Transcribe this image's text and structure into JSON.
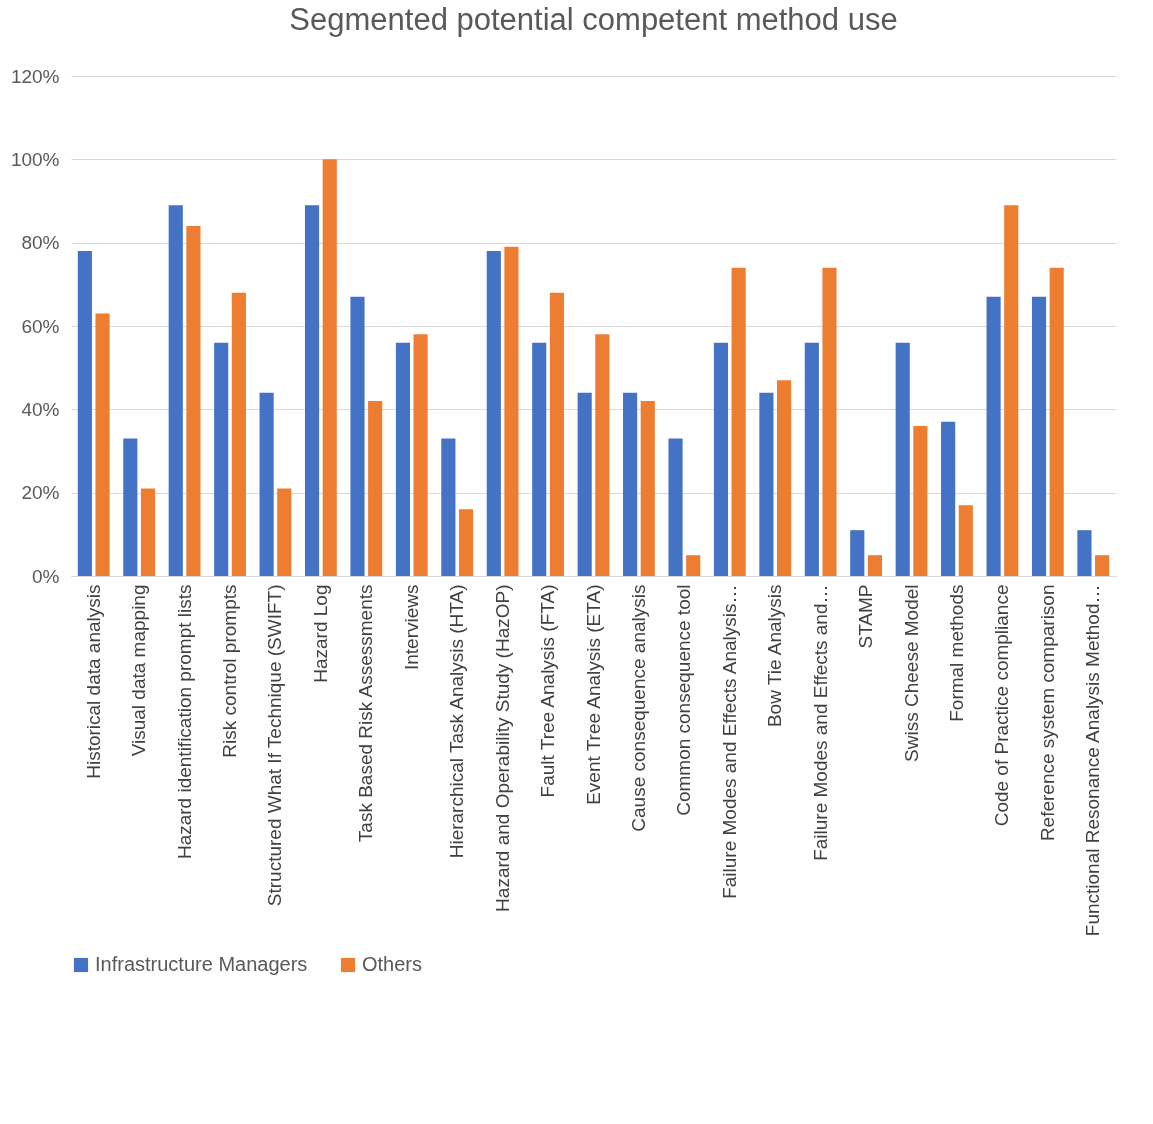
{
  "chart_data": {
    "type": "bar",
    "title": "Segmented potential competent method use",
    "categories": [
      "Historical data analysis",
      "Visual data mapping",
      "Hazard identification prompt lists",
      "Risk control prompts",
      "Structured What If Technique (SWIFT)",
      "Hazard Log",
      "Task Based Risk Assessments",
      "Interviews",
      "Hierarchical Task Analysis (HTA)",
      "Hazard and Operability Study (HazOP)",
      "Fault Tree Analysis (FTA)",
      "Event Tree Analysis (ETA)",
      "Cause consequence analysis",
      "Common consequence tool",
      "Failure Modes and Effects Analysis…",
      "Bow Tie Analysis",
      "Failure Modes and Effects and…",
      "STAMP",
      "Swiss Cheese Model",
      "Formal methods",
      "Code of Practice compliance",
      "Reference system comparison",
      "Functional Resonance Analysis Method…"
    ],
    "series": [
      {
        "name": "Infrastructure Managers",
        "color": "#4472c4",
        "values": [
          78,
          33,
          89,
          56,
          44,
          89,
          67,
          56,
          33,
          78,
          56,
          44,
          44,
          33,
          56,
          44,
          56,
          11,
          56,
          37,
          67,
          67,
          11
        ]
      },
      {
        "name": "Others",
        "color": "#ed7d31",
        "values": [
          63,
          21,
          84,
          68,
          21,
          100,
          42,
          58,
          16,
          79,
          68,
          58,
          42,
          5,
          74,
          47,
          74,
          5,
          36,
          17,
          89,
          74,
          5
        ]
      }
    ],
    "ylim": [
      0,
      120
    ],
    "yticks": [
      {
        "value": 0,
        "label": "0%"
      },
      {
        "value": 20,
        "label": "20%"
      },
      {
        "value": 40,
        "label": "40%"
      },
      {
        "value": 60,
        "label": "60%"
      },
      {
        "value": 80,
        "label": "80%"
      },
      {
        "value": 100,
        "label": "100%"
      },
      {
        "value": 120,
        "label": "120%"
      }
    ],
    "grid": "y",
    "legend": "bottom"
  }
}
